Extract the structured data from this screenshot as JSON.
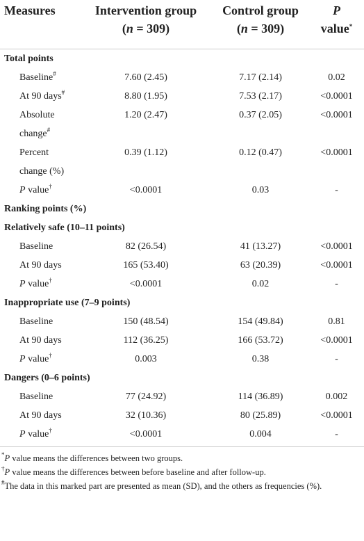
{
  "header": [
    {
      "lines": [
        [
          {
            "t": "Measures"
          }
        ]
      ]
    },
    {
      "lines": [
        [
          {
            "t": "Intervention group"
          }
        ],
        [
          {
            "t": "("
          },
          {
            "t": "n",
            "i": true
          },
          {
            "t": " = 309)"
          }
        ]
      ]
    },
    {
      "lines": [
        [
          {
            "t": "Control group"
          }
        ],
        [
          {
            "t": "("
          },
          {
            "t": "n",
            "i": true
          },
          {
            "t": " = 309)"
          }
        ]
      ]
    },
    {
      "lines": [
        [
          {
            "t": "P",
            "i": true
          }
        ],
        [
          {
            "t": "value"
          },
          {
            "t": "*",
            "sup": true
          }
        ]
      ]
    }
  ],
  "rows": [
    {
      "label": [
        {
          "t": "Total points"
        }
      ]
    },
    {
      "label": [
        {
          "t": "Baseline"
        },
        {
          "t": "#",
          "sup": true
        }
      ],
      "cells": [
        "7.60 (2.45)",
        "7.17 (2.14)",
        "0.02"
      ]
    },
    {
      "label": [
        {
          "t": "At 90 days"
        },
        {
          "t": "#",
          "sup": true
        }
      ],
      "cells": [
        "8.80 (1.95)",
        "7.53 (2.17)",
        "<0.0001"
      ]
    },
    {
      "label": [
        {
          "t": "Absolute change"
        },
        {
          "t": "#",
          "sup": true
        }
      ],
      "cells": [
        "1.20 (2.47)",
        "0.37 (2.05)",
        "<0.0001"
      ]
    },
    {
      "label": [
        {
          "t": "Percent change (%)"
        }
      ],
      "cells": [
        "0.39 (1.12)",
        "0.12 (0.47)",
        "<0.0001"
      ]
    },
    {
      "label": [
        {
          "t": "P",
          "i": true
        },
        {
          "t": " value"
        },
        {
          "t": "†",
          "sup": true
        }
      ],
      "cells": [
        "<0.0001",
        "0.03",
        "-"
      ]
    },
    {
      "label": [
        {
          "t": "Ranking points (%)"
        }
      ]
    },
    {
      "label": [
        {
          "t": "Relatively safe (10–11 points)"
        }
      ]
    },
    {
      "label": [
        {
          "t": "Baseline"
        }
      ],
      "cells": [
        "82 (26.54)",
        "41 (13.27)",
        "<0.0001"
      ]
    },
    {
      "label": [
        {
          "t": "At 90 days"
        }
      ],
      "cells": [
        "165 (53.40)",
        "63 (20.39)",
        "<0.0001"
      ]
    },
    {
      "label": [
        {
          "t": "P",
          "i": true
        },
        {
          "t": " value"
        },
        {
          "t": "†",
          "sup": true
        }
      ],
      "cells": [
        "<0.0001",
        "0.02",
        "-"
      ]
    },
    {
      "label": [
        {
          "t": "Inappropriate use (7–9 points)"
        }
      ]
    },
    {
      "label": [
        {
          "t": "Baseline"
        }
      ],
      "cells": [
        "150 (48.54)",
        "154 (49.84)",
        "0.81"
      ]
    },
    {
      "label": [
        {
          "t": "At 90 days"
        }
      ],
      "cells": [
        "112 (36.25)",
        "166 (53.72)",
        "<0.0001"
      ]
    },
    {
      "label": [
        {
          "t": "P",
          "i": true
        },
        {
          "t": " value"
        },
        {
          "t": "†",
          "sup": true
        }
      ],
      "cells": [
        "0.003",
        "0.38",
        "-"
      ]
    },
    {
      "label": [
        {
          "t": "Dangers (0–6 points)"
        }
      ]
    },
    {
      "label": [
        {
          "t": "Baseline"
        }
      ],
      "cells": [
        "77 (24.92)",
        "114 (36.89)",
        "0.002"
      ]
    },
    {
      "label": [
        {
          "t": "At 90 days"
        }
      ],
      "cells": [
        "32 (10.36)",
        "80 (25.89)",
        "<0.0001"
      ]
    },
    {
      "label": [
        {
          "t": "P",
          "i": true
        },
        {
          "t": " value"
        },
        {
          "t": "†",
          "sup": true
        }
      ],
      "cells": [
        "<0.0001",
        "0.004",
        "-"
      ]
    }
  ],
  "footnotes": [
    [
      {
        "t": "*",
        "sup": true
      },
      {
        "t": "P",
        "i": true
      },
      {
        "t": " value means the differences between two groups."
      }
    ],
    [
      {
        "t": "†",
        "sup": true
      },
      {
        "t": "P",
        "i": true
      },
      {
        "t": " value means the differences between before baseline and after follow-up."
      }
    ],
    [
      {
        "t": "#",
        "sup": true
      },
      {
        "t": "The data in this marked part are presented as mean (SD), and the others as frequencies (%)."
      }
    ]
  ]
}
